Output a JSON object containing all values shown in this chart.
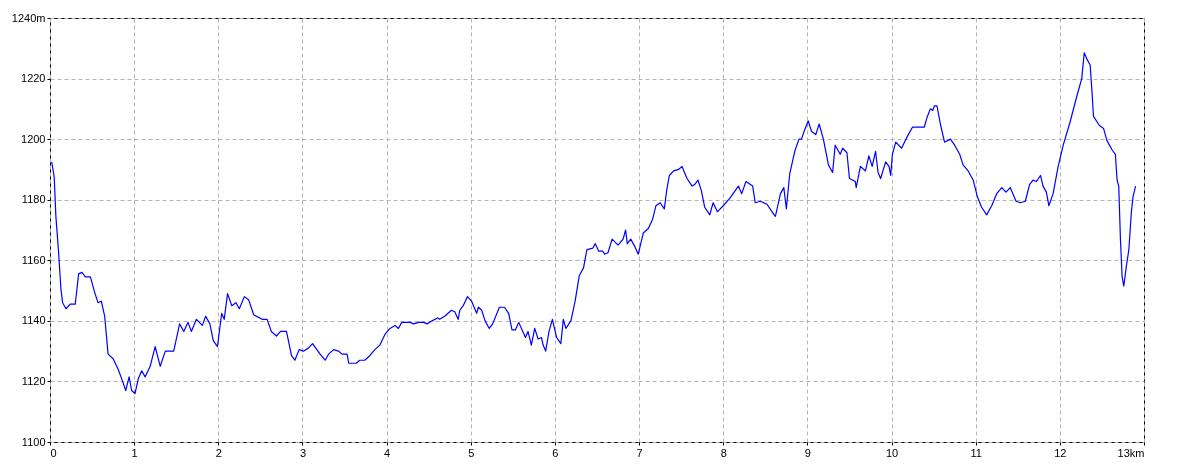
{
  "chart_data": {
    "type": "line",
    "xlim": [
      0,
      13
    ],
    "ylim": [
      1100,
      1240
    ],
    "xticks": [
      0,
      1,
      2,
      3,
      4,
      5,
      6,
      7,
      8,
      9,
      10,
      11,
      12,
      {
        "value": 13,
        "label": "13km"
      }
    ],
    "yticks": [
      1100,
      1120,
      1140,
      1160,
      1180,
      1200,
      1220,
      {
        "value": 1240,
        "label": "1240m"
      }
    ],
    "grid": true,
    "line_style": "solid",
    "x": [
      0.02,
      0.05,
      0.07,
      0.1,
      0.13,
      0.15,
      0.19,
      0.24,
      0.3,
      0.34,
      0.38,
      0.42,
      0.48,
      0.53,
      0.57,
      0.61,
      0.65,
      0.69,
      0.75,
      0.81,
      0.85,
      0.9,
      0.94,
      0.97,
      1.01,
      1.05,
      1.09,
      1.13,
      1.19,
      1.25,
      1.31,
      1.37,
      1.47,
      1.54,
      1.59,
      1.64,
      1.68,
      1.74,
      1.81,
      1.85,
      1.9,
      1.94,
      1.99,
      2.04,
      2.07,
      2.11,
      2.16,
      2.21,
      2.25,
      2.31,
      2.36,
      2.42,
      2.52,
      2.58,
      2.63,
      2.69,
      2.74,
      2.81,
      2.87,
      2.91,
      2.96,
      3.01,
      3.07,
      3.12,
      3.21,
      3.27,
      3.31,
      3.37,
      3.43,
      3.47,
      3.53,
      3.55,
      3.64,
      3.68,
      3.74,
      3.8,
      3.86,
      3.92,
      3.98,
      4.04,
      4.1,
      4.14,
      4.18,
      4.28,
      4.32,
      4.38,
      4.44,
      4.48,
      4.54,
      4.61,
      4.63,
      4.69,
      4.77,
      4.81,
      4.85,
      4.87,
      4.91,
      4.96,
      5.01,
      5.07,
      5.09,
      5.13,
      5.17,
      5.22,
      5.26,
      5.34,
      5.4,
      5.45,
      5.49,
      5.53,
      5.57,
      5.61,
      5.65,
      5.68,
      5.72,
      5.76,
      5.8,
      5.84,
      5.86,
      5.89,
      5.93,
      5.97,
      6.02,
      6.07,
      6.1,
      6.13,
      6.19,
      6.24,
      6.29,
      6.34,
      6.38,
      6.45,
      6.48,
      6.52,
      6.57,
      6.59,
      6.63,
      6.68,
      6.75,
      6.81,
      6.84,
      6.86,
      6.9,
      6.95,
      6.99,
      7.05,
      7.11,
      7.16,
      7.2,
      7.25,
      7.3,
      7.33,
      7.36,
      7.41,
      7.47,
      7.51,
      7.57,
      7.63,
      7.66,
      7.7,
      7.74,
      7.78,
      7.84,
      7.88,
      7.93,
      8.0,
      8.08,
      8.18,
      8.22,
      8.27,
      8.35,
      8.38,
      8.44,
      8.52,
      8.58,
      8.62,
      8.68,
      8.72,
      8.75,
      8.79,
      8.85,
      8.9,
      8.93,
      8.96,
      9.01,
      9.05,
      9.1,
      9.14,
      9.19,
      9.25,
      9.3,
      9.33,
      9.39,
      9.42,
      9.47,
      9.5,
      9.57,
      9.58,
      9.63,
      9.69,
      9.73,
      9.77,
      9.81,
      9.84,
      9.87,
      9.93,
      9.97,
      9.99,
      10.01,
      10.05,
      10.12,
      10.18,
      10.25,
      10.39,
      10.42,
      10.46,
      10.49,
      10.51,
      10.54,
      10.58,
      10.63,
      10.7,
      10.75,
      10.81,
      10.85,
      10.91,
      10.97,
      11.02,
      11.07,
      11.13,
      11.19,
      11.25,
      11.31,
      11.36,
      11.41,
      11.48,
      11.53,
      11.59,
      11.64,
      11.68,
      11.72,
      11.77,
      11.8,
      11.84,
      11.87,
      11.92,
      11.98,
      12.04,
      12.12,
      12.2,
      12.26,
      12.29,
      12.32,
      12.36,
      12.38,
      12.4,
      12.47,
      12.52,
      12.56,
      12.62,
      12.66,
      12.68,
      12.7,
      12.72,
      12.74,
      12.76,
      12.79,
      12.82,
      12.85,
      12.87,
      12.9
    ],
    "series": [
      {
        "color": "#0000ff",
        "values": [
          1192.5,
          1187.5,
          1174.5,
          1163.5,
          1150.5,
          1146,
          1144,
          1145.5,
          1145.5,
          1155.5,
          1156,
          1154.5,
          1154.5,
          1149.5,
          1146,
          1146.5,
          1141.5,
          1129,
          1127.5,
          1124,
          1121,
          1117,
          1121.5,
          1117,
          1116,
          1121,
          1123.5,
          1121.5,
          1125,
          1131.5,
          1125,
          1130,
          1130,
          1139,
          1136.5,
          1139.5,
          1136.5,
          1140.5,
          1138.5,
          1141.5,
          1139,
          1133.5,
          1131.5,
          1142.5,
          1140.5,
          1149,
          1145,
          1146,
          1144,
          1148,
          1147,
          1142,
          1140.5,
          1140.5,
          1136.5,
          1135,
          1136.5,
          1136.5,
          1128.5,
          1127,
          1130.5,
          1130,
          1131,
          1132.5,
          1129,
          1127,
          1129,
          1130.5,
          1130,
          1129,
          1129,
          1126,
          1126,
          1127,
          1127,
          1128.5,
          1130.5,
          1132,
          1135.5,
          1137.5,
          1138.5,
          1137.5,
          1139.5,
          1139.5,
          1139,
          1139.5,
          1139.5,
          1139,
          1140,
          1141,
          1140.5,
          1141.5,
          1143.5,
          1143,
          1140.5,
          1143.5,
          1145,
          1148,
          1146.5,
          1142.5,
          1144.5,
          1143.5,
          1140,
          1137.5,
          1139,
          1144.5,
          1144.5,
          1142.5,
          1137,
          1137,
          1139.5,
          1137,
          1134.5,
          1136.5,
          1132,
          1137.5,
          1134,
          1134.5,
          1132,
          1130,
          1136.5,
          1140.5,
          1134.5,
          1132.5,
          1140.5,
          1137.5,
          1140,
          1146.5,
          1155,
          1157.5,
          1163.5,
          1164,
          1165.5,
          1163,
          1163,
          1162,
          1162.5,
          1167,
          1165,
          1167,
          1170,
          1165.5,
          1167,
          1164.5,
          1162,
          1169,
          1170.5,
          1173.5,
          1178,
          1179,
          1177,
          1183.5,
          1188,
          1189.5,
          1190,
          1191,
          1187,
          1184.5,
          1185,
          1186.5,
          1183,
          1177.5,
          1175,
          1179,
          1176,
          1178,
          1180.5,
          1184.5,
          1182,
          1186,
          1184.5,
          1179,
          1179.5,
          1178.5,
          1176,
          1174.5,
          1182,
          1184,
          1177,
          1188.5,
          1196,
          1200,
          1200,
          1202.5,
          1206,
          1202.5,
          1201.5,
          1205,
          1200,
          1191.5,
          1189,
          1198,
          1195,
          1197,
          1195.5,
          1187,
          1186,
          1184,
          1191,
          1189.5,
          1194.5,
          1191,
          1196,
          1189,
          1187,
          1192.5,
          1191,
          1188,
          1195,
          1199,
          1197,
          1200.5,
          1204,
          1204,
          1207,
          1210,
          1209.5,
          1211,
          1211,
          1205,
          1199,
          1200,
          1198,
          1195,
          1191.5,
          1189.5,
          1186.5,
          1181,
          1177.5,
          1175,
          1178,
          1182,
          1184,
          1182.5,
          1184,
          1179.5,
          1179,
          1179.5,
          1185,
          1186.5,
          1186,
          1188,
          1184.5,
          1182.5,
          1178,
          1182,
          1191,
          1198,
          1205.5,
          1214,
          1220,
          1228.5,
          1226.5,
          1224.5,
          1216.5,
          1207.5,
          1204.5,
          1203.5,
          1199.5,
          1196.5,
          1195,
          1186.5,
          1184.5,
          1167,
          1154.5,
          1151.5,
          1158,
          1163.5,
          1176,
          1181,
          1184.5
        ]
      }
    ]
  }
}
